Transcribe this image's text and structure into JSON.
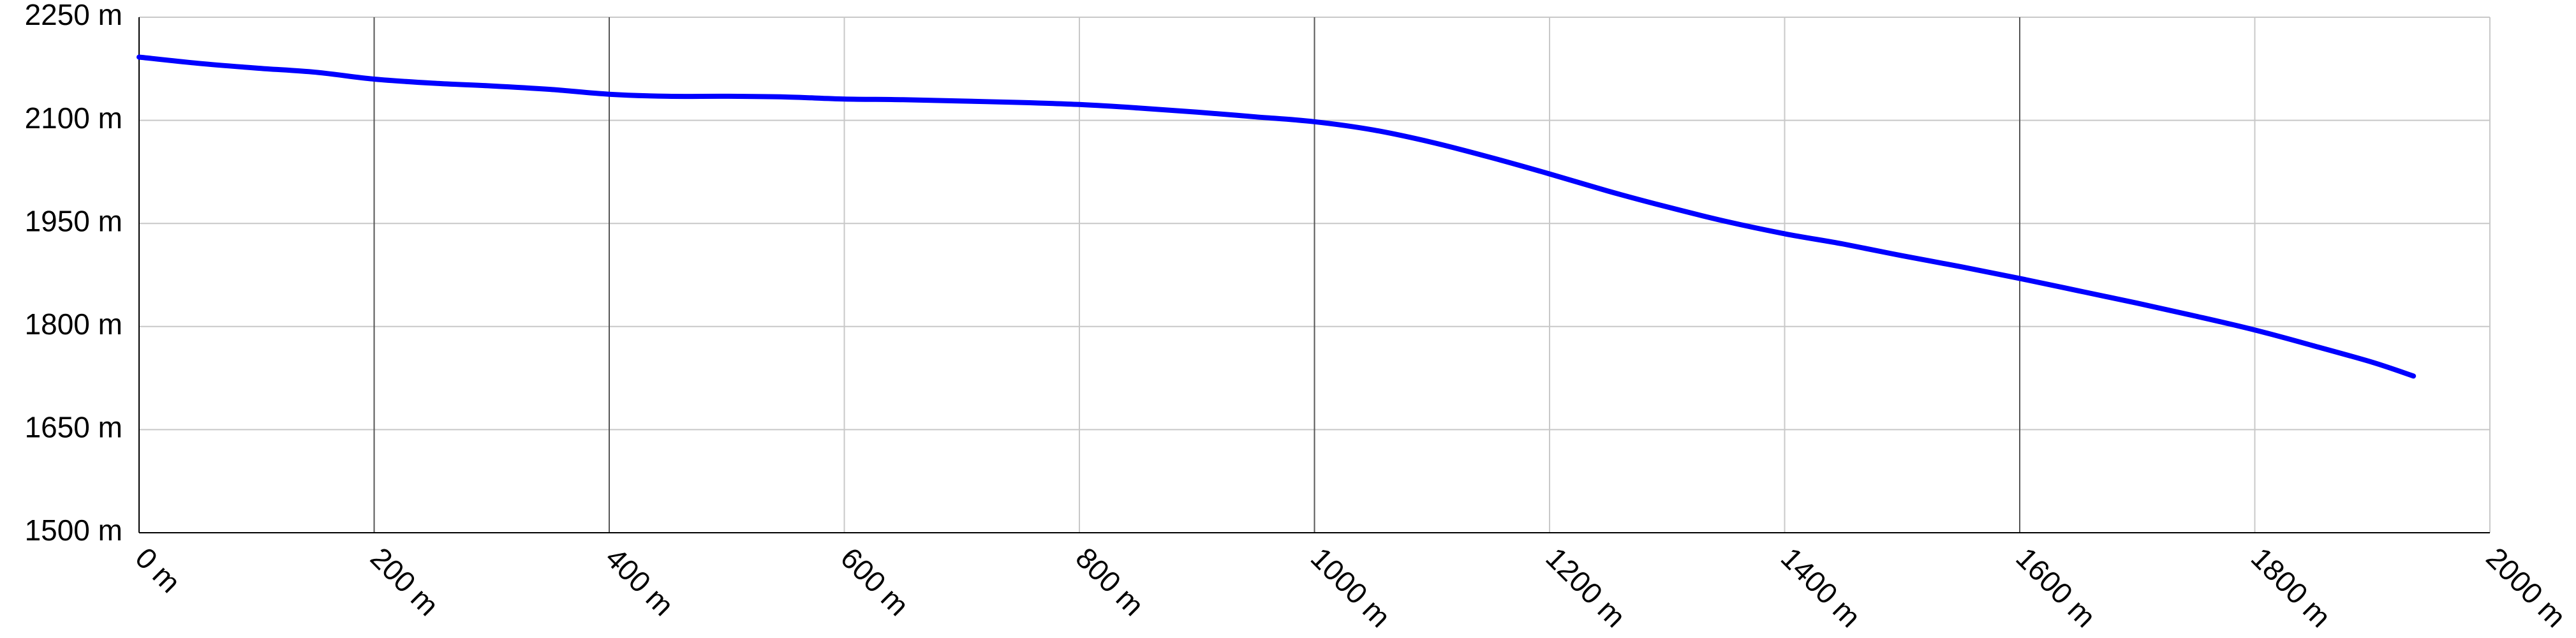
{
  "chart_data": {
    "type": "line",
    "title": "",
    "xlabel": "",
    "ylabel": "",
    "x_unit": "m",
    "y_unit": "m",
    "xlim": [
      0,
      2000
    ],
    "ylim": [
      1500,
      2250
    ],
    "x_ticks": [
      {
        "value": 0,
        "label": "0 m"
      },
      {
        "value": 200,
        "label": "200 m"
      },
      {
        "value": 400,
        "label": "400 m"
      },
      {
        "value": 600,
        "label": "600 m"
      },
      {
        "value": 800,
        "label": "800 m"
      },
      {
        "value": 1000,
        "label": "1000 m"
      },
      {
        "value": 1200,
        "label": "1200 m"
      },
      {
        "value": 1400,
        "label": "1400 m"
      },
      {
        "value": 1600,
        "label": "1600 m"
      },
      {
        "value": 1800,
        "label": "1800 m"
      },
      {
        "value": 2000,
        "label": "2000 m"
      }
    ],
    "x_major_ticks": [
      200,
      400,
      1000,
      1600
    ],
    "y_ticks": [
      {
        "value": 1500,
        "label": "1500 m"
      },
      {
        "value": 1650,
        "label": "1650 m"
      },
      {
        "value": 1800,
        "label": "1800 m"
      },
      {
        "value": 1950,
        "label": "1950 m"
      },
      {
        "value": 2100,
        "label": "2100 m"
      },
      {
        "value": 2250,
        "label": "2250 m"
      }
    ],
    "grid": true,
    "legend": "none",
    "colors": {
      "line": "#0000ff",
      "grid": "#c8c8c8",
      "grid_major": "#555555",
      "axis": "#000000"
    },
    "series": [
      {
        "x": [
          0,
          50,
          100,
          150,
          200,
          250,
          300,
          350,
          400,
          450,
          500,
          550,
          600,
          650,
          700,
          750,
          800,
          850,
          900,
          950,
          1000,
          1050,
          1100,
          1150,
          1200,
          1250,
          1300,
          1350,
          1400,
          1450,
          1500,
          1550,
          1600,
          1650,
          1700,
          1750,
          1800,
          1850,
          1900,
          1935
        ],
        "y": [
          2192,
          2183,
          2176,
          2170,
          2160,
          2154,
          2150,
          2145,
          2138,
          2135,
          2135,
          2134,
          2131,
          2130,
          2128,
          2126,
          2123,
          2118,
          2112,
          2105,
          2098,
          2086,
          2068,
          2046,
          2022,
          1997,
          1974,
          1953,
          1935,
          1920,
          1903,
          1887,
          1870,
          1852,
          1834,
          1815,
          1795,
          1772,
          1748,
          1728
        ]
      }
    ]
  }
}
